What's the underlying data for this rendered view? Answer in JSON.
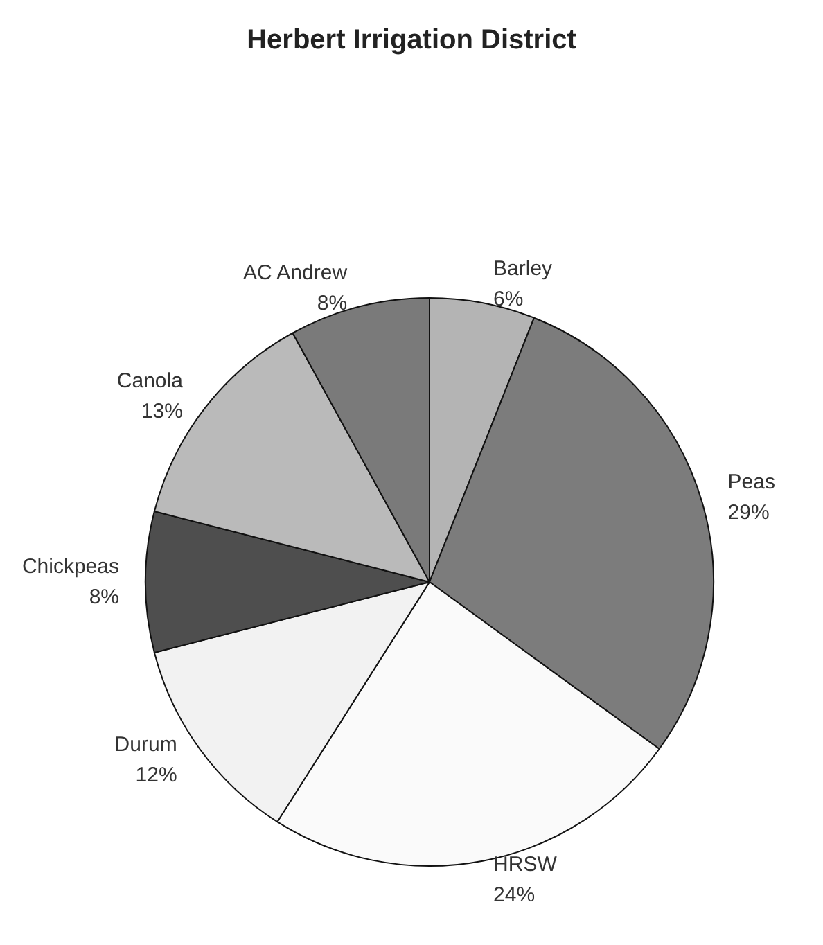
{
  "chart_data": {
    "type": "pie",
    "title": "Herbert Irrigation District",
    "categories": [
      "Barley",
      "Peas",
      "HRSW",
      "Durum",
      "Chickpeas",
      "Canola",
      "AC Andrew"
    ],
    "values": [
      6,
      29,
      24,
      12,
      8,
      13,
      8
    ],
    "colors": [
      "#b4b4b4",
      "#7c7c7c",
      "#fafafa",
      "#f2f2f2",
      "#4e4e4e",
      "#bababa",
      "#7a7a7a"
    ],
    "value_labels": [
      "6%",
      "29%",
      "24%",
      "12%",
      "8%",
      "13%",
      "8%"
    ],
    "legend": false
  }
}
